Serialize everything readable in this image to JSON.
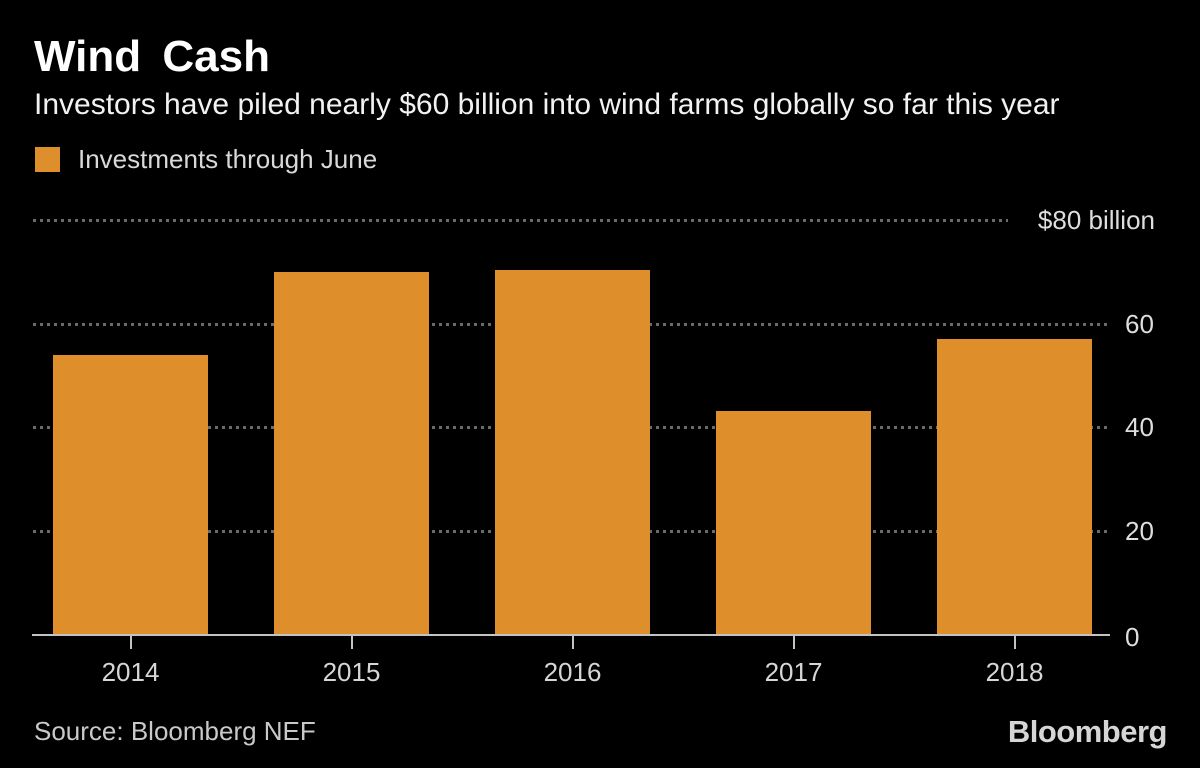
{
  "header": {
    "title": "Wind Cash",
    "subtitle": "Investors have piled nearly $60 billion into wind farms globally so far this year",
    "legend": {
      "label": "Investments through June",
      "swatch_color": "#de8e2b"
    }
  },
  "chart_data": {
    "type": "bar",
    "title": "Wind Cash",
    "subtitle": "Investors have piled nearly $60 billion into wind farms globally so far this year",
    "series_name": "Investments through June",
    "categories": [
      "2014",
      "2015",
      "2016",
      "2017",
      "2018"
    ],
    "values": [
      54,
      70,
      70.4,
      43,
      57
    ],
    "unit": "$ billion",
    "ylim": [
      0,
      80
    ],
    "yticks": [
      {
        "value": 80,
        "label": "$80 billion"
      },
      {
        "value": 60,
        "label": "60"
      },
      {
        "value": 40,
        "label": "40"
      },
      {
        "value": 20,
        "label": "20"
      },
      {
        "value": 0,
        "label": "0"
      }
    ],
    "grid": "horizontal dotted gridlines, labels on right",
    "legend_position": "top-left",
    "bar_color": "#de8e2b"
  },
  "footer": {
    "source": "Source: Bloomberg NEF",
    "logo": "Bloomberg"
  },
  "colors": {
    "background": "#000000",
    "bar": "#de8e2b",
    "title_text": "#ffffff",
    "subtitle_text": "#f2f2f2",
    "muted_text": "#d9d9d9",
    "axis_line": "#c3c3c3",
    "gridline": "#6a6a6a"
  }
}
